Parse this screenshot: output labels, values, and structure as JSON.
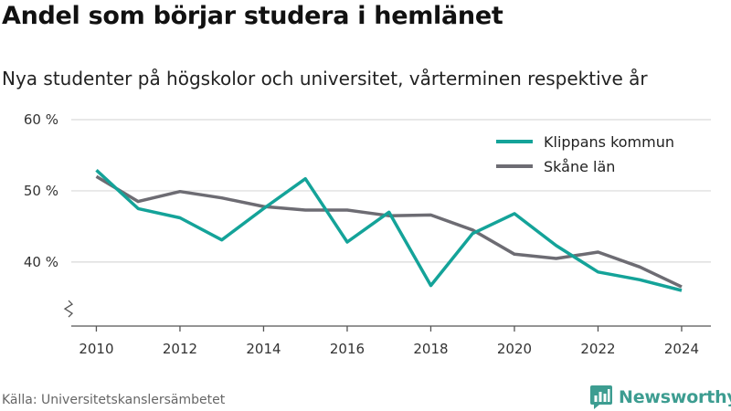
{
  "header": {
    "title": "Andel som börjar studera i hemlänet",
    "subtitle": "Nya studenter på högskolor och universitet, vårterminen respektive år"
  },
  "footer": {
    "source": "Källa: Universitetskanslersämbetet",
    "brand": "Newsworthy",
    "logo_icon": "bar-chart-speech-bubble-icon"
  },
  "colors": {
    "series_1": "#14a399",
    "series_2": "#6d6c73",
    "grid": "#d9d9d9",
    "axis": "#555555",
    "brand": "#3d9d91"
  },
  "chart_data": {
    "type": "line",
    "title": "",
    "xlabel": "",
    "ylabel": "",
    "y_unit": "%",
    "ylim": [
      31,
      60
    ],
    "y_ticks": [
      40,
      50,
      60
    ],
    "y_tick_labels": [
      "40 %",
      "50 %",
      "60 %"
    ],
    "y_axis_break": true,
    "xlim": [
      2009.4,
      2024.7
    ],
    "x_ticks": [
      2010,
      2012,
      2014,
      2016,
      2018,
      2020,
      2022,
      2024
    ],
    "x_tick_labels": [
      "2010",
      "2012",
      "2014",
      "2016",
      "2018",
      "2020",
      "2022",
      "2024"
    ],
    "grid": true,
    "legend_position": "top-right",
    "x": [
      2010,
      2011,
      2012,
      2013,
      2014,
      2015,
      2016,
      2017,
      2018,
      2019,
      2020,
      2021,
      2022,
      2023,
      2024
    ],
    "series": [
      {
        "name": "Klippans kommun",
        "values": [
          52.9,
          47.5,
          46.2,
          43.1,
          47.5,
          51.7,
          42.8,
          47.0,
          36.7,
          44.0,
          46.8,
          42.3,
          38.6,
          37.5,
          36.0
        ]
      },
      {
        "name": "Skåne län",
        "values": [
          52.0,
          48.5,
          49.9,
          49.0,
          47.8,
          47.3,
          47.3,
          46.5,
          46.6,
          44.5,
          41.1,
          40.5,
          41.4,
          39.3,
          36.5
        ]
      }
    ]
  }
}
